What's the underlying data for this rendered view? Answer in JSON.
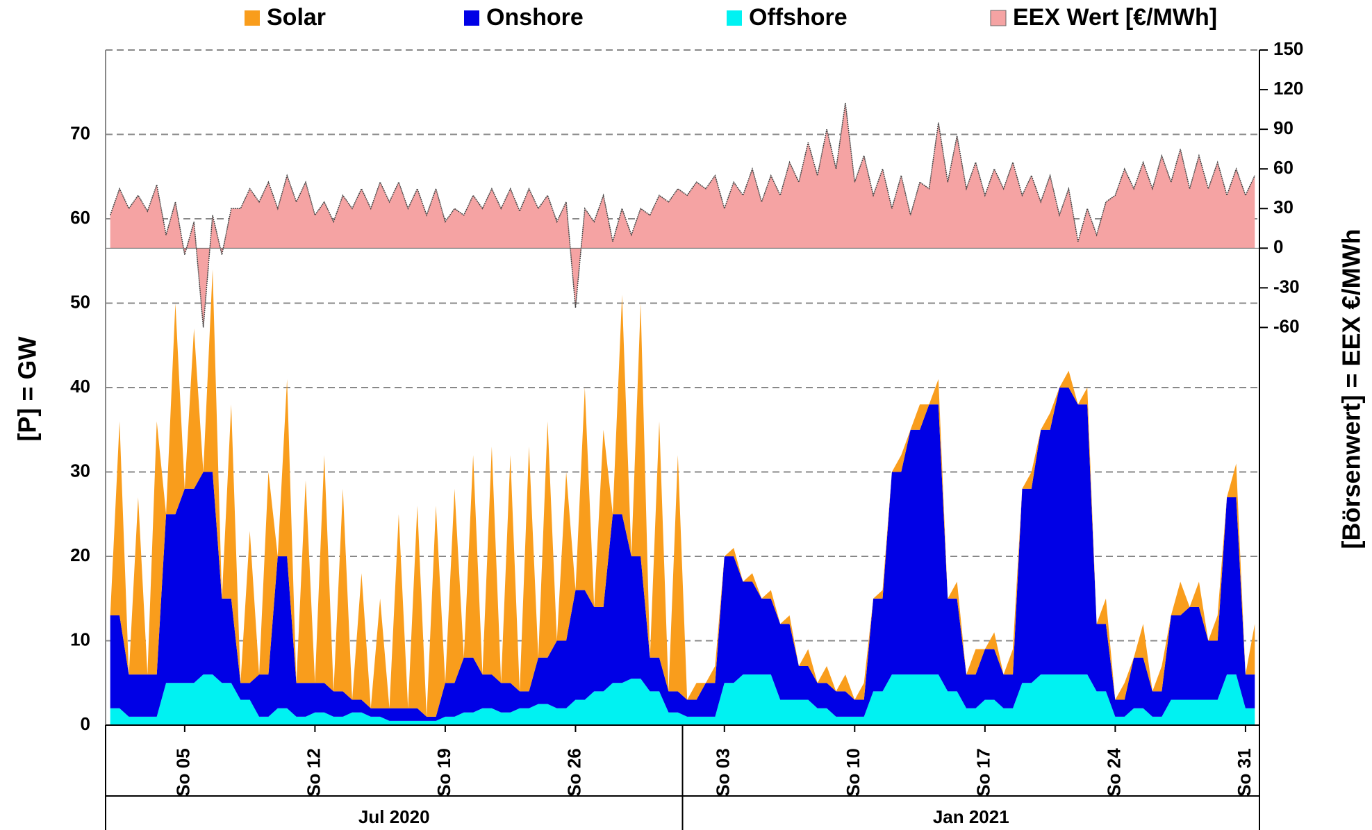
{
  "chart_data": {
    "type": "stacked-area",
    "y_label": "[P] = GW",
    "y2_label": "[Börsenwert] =  EEX   €/MWh",
    "group_labels": [
      "Jul 2020",
      "Jan 2021"
    ],
    "categories": [
      null,
      null,
      null,
      null,
      null,
      null,
      null,
      null,
      "So 05",
      null,
      null,
      null,
      null,
      null,
      null,
      null,
      null,
      null,
      null,
      null,
      null,
      null,
      "So 12",
      null,
      null,
      null,
      null,
      null,
      null,
      null,
      null,
      null,
      null,
      null,
      null,
      null,
      "So 19",
      null,
      null,
      null,
      null,
      null,
      null,
      null,
      null,
      null,
      null,
      null,
      null,
      null,
      "So 26",
      null,
      null,
      null,
      null,
      null,
      null,
      null,
      null,
      null,
      null,
      null,
      null,
      null,
      null,
      null,
      "So 03",
      null,
      null,
      null,
      null,
      null,
      null,
      null,
      null,
      null,
      null,
      null,
      null,
      null,
      "So 10",
      null,
      null,
      null,
      null,
      null,
      null,
      null,
      null,
      null,
      null,
      null,
      null,
      null,
      "So 17",
      null,
      null,
      null,
      null,
      null,
      null,
      null,
      null,
      null,
      null,
      null,
      null,
      null,
      "So 24",
      null,
      null,
      null,
      null,
      null,
      null,
      null,
      null,
      null,
      null,
      null,
      null,
      null,
      "So 31",
      null
    ],
    "ylim": [
      0,
      80
    ],
    "yticks": [
      0,
      10,
      20,
      30,
      40,
      50,
      60,
      70
    ],
    "y2lim": [
      -361,
      150
    ],
    "y2ticks": [
      150,
      120,
      90,
      60,
      30,
      0,
      -30,
      -60
    ],
    "y2_negative_color": "#ff0000",
    "grid": true,
    "series": [
      {
        "name": "Solar",
        "color": "#f99d1c",
        "values": [
          0,
          23,
          0,
          21,
          0,
          30,
          0,
          25,
          0,
          19,
          0,
          24,
          0,
          23,
          0,
          18,
          0,
          24,
          0,
          21,
          0,
          24,
          0,
          27,
          0,
          24,
          0,
          15,
          0,
          13,
          0,
          23,
          0,
          24,
          0,
          25,
          0,
          23,
          0,
          24,
          0,
          27,
          0,
          27,
          0,
          29,
          0,
          28,
          0,
          20,
          0,
          24,
          0,
          21,
          0,
          26,
          0,
          30,
          0,
          28,
          0,
          28,
          0,
          2,
          0,
          2,
          0,
          1,
          0,
          1,
          0,
          1,
          0,
          1,
          0,
          2,
          0,
          2,
          0,
          2,
          0,
          2,
          0,
          1,
          0,
          2,
          0,
          3,
          0,
          3,
          0,
          2,
          0,
          3,
          0,
          2,
          0,
          3,
          0,
          2,
          0,
          2,
          0,
          2,
          0,
          2,
          0,
          3,
          0,
          2,
          0,
          4,
          0,
          3,
          0,
          4,
          0,
          3,
          0,
          3,
          0,
          4,
          0,
          6
        ]
      },
      {
        "name": "Onshore",
        "color": "#0000e6",
        "values": [
          11,
          11,
          5,
          5,
          5,
          5,
          20,
          20,
          23,
          23,
          24,
          24,
          10,
          10,
          2,
          2,
          5,
          5,
          18,
          18,
          4,
          4,
          3.5,
          3.5,
          3,
          3,
          1.5,
          1.5,
          1,
          1,
          1.5,
          1.5,
          1.5,
          1.5,
          0.5,
          0.5,
          4,
          4,
          6.5,
          6.5,
          4,
          4,
          3.5,
          3.5,
          2,
          2,
          5.5,
          5.5,
          8,
          8,
          13,
          13,
          10,
          10,
          20,
          20,
          14.5,
          14.5,
          4,
          4,
          2.5,
          2.5,
          2,
          2,
          4,
          4,
          15,
          15,
          11,
          11,
          9,
          9,
          9,
          9,
          4,
          4,
          3,
          3,
          3,
          3,
          2,
          2,
          11,
          11,
          24,
          24,
          29,
          29,
          32,
          32,
          11,
          11,
          4,
          4,
          6,
          6,
          4,
          4,
          23,
          23,
          29,
          29,
          34,
          34,
          32,
          32,
          8,
          8,
          2,
          2,
          6,
          6,
          3,
          3,
          10,
          10,
          11,
          11,
          7,
          7,
          21,
          21,
          4,
          4
        ]
      },
      {
        "name": "Offshore",
        "color": "#00f2f2",
        "values": [
          2,
          2,
          1,
          1,
          1,
          1,
          5,
          5,
          5,
          5,
          6,
          6,
          5,
          5,
          3,
          3,
          1,
          1,
          2,
          2,
          1,
          1,
          1.5,
          1.5,
          1,
          1,
          1.5,
          1.5,
          1,
          1,
          0.5,
          0.5,
          0.5,
          0.5,
          0.5,
          0.5,
          1,
          1,
          1.5,
          1.5,
          2,
          2,
          1.5,
          1.5,
          2,
          2,
          2.5,
          2.5,
          2,
          2,
          3,
          3,
          4,
          4,
          5,
          5,
          5.5,
          5.5,
          4,
          4,
          1.5,
          1.5,
          1,
          1,
          1,
          1,
          5,
          5,
          6,
          6,
          6,
          6,
          3,
          3,
          3,
          3,
          2,
          2,
          1,
          1,
          1,
          1,
          4,
          4,
          6,
          6,
          6,
          6,
          6,
          6,
          4,
          4,
          2,
          2,
          3,
          3,
          2,
          2,
          5,
          5,
          6,
          6,
          6,
          6,
          6,
          6,
          4,
          4,
          1,
          1,
          2,
          2,
          1,
          1,
          3,
          3,
          3,
          3,
          3,
          3,
          6,
          6,
          2,
          2
        ]
      },
      {
        "name": "EEX Wert [€/MWh]",
        "color": "#f5a3a3",
        "axis": "y2",
        "values": [
          25,
          45,
          30,
          40,
          28,
          48,
          10,
          35,
          -5,
          20,
          -60,
          25,
          -5,
          30,
          30,
          45,
          35,
          50,
          30,
          55,
          35,
          50,
          25,
          35,
          20,
          40,
          30,
          45,
          30,
          50,
          35,
          50,
          30,
          45,
          25,
          45,
          20,
          30,
          25,
          40,
          30,
          45,
          30,
          45,
          28,
          45,
          30,
          40,
          20,
          35,
          -45,
          30,
          20,
          40,
          5,
          30,
          10,
          30,
          25,
          40,
          35,
          45,
          40,
          50,
          45,
          55,
          30,
          50,
          40,
          60,
          35,
          55,
          40,
          65,
          50,
          80,
          55,
          90,
          60,
          110,
          50,
          70,
          40,
          60,
          30,
          55,
          25,
          50,
          45,
          95,
          50,
          85,
          45,
          65,
          40,
          60,
          45,
          65,
          40,
          55,
          35,
          55,
          25,
          45,
          5,
          30,
          10,
          35,
          40,
          60,
          45,
          65,
          45,
          70,
          50,
          75,
          45,
          70,
          45,
          65,
          40,
          60,
          40,
          55
        ]
      }
    ]
  }
}
